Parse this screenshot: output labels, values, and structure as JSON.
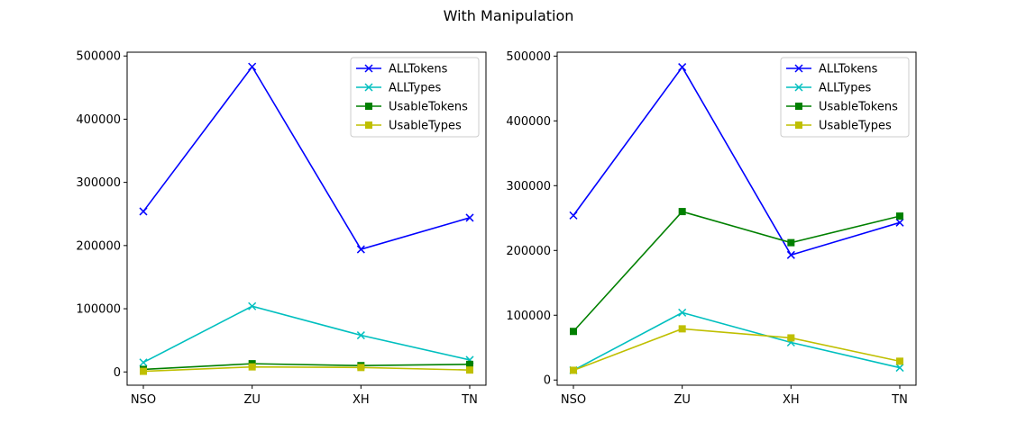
{
  "figure": {
    "title": "With Manipulation"
  },
  "chart_data": [
    {
      "type": "line",
      "title": "",
      "xlabel": "",
      "ylabel": "",
      "categories": [
        "NSO",
        "ZU",
        "XH",
        "TN"
      ],
      "ylim": [
        -21000,
        506000
      ],
      "yticks": [
        0,
        100000,
        200000,
        300000,
        400000,
        500000
      ],
      "grid": false,
      "legend_position": "upper right",
      "series": [
        {
          "name": "ALLTokens",
          "color": "#0000ff",
          "marker": "x",
          "values": [
            254000,
            483000,
            194000,
            244000
          ]
        },
        {
          "name": "ALLTypes",
          "color": "#00bfbf",
          "marker": "x",
          "values": [
            15000,
            104000,
            58000,
            19000
          ]
        },
        {
          "name": "UsableTokens",
          "color": "#008000",
          "marker": "square",
          "values": [
            4000,
            13000,
            10000,
            12000
          ]
        },
        {
          "name": "UsableTypes",
          "color": "#bfbf00",
          "marker": "square",
          "values": [
            1000,
            8000,
            7000,
            3000
          ]
        }
      ]
    },
    {
      "type": "line",
      "title": "",
      "xlabel": "",
      "ylabel": "",
      "categories": [
        "NSO",
        "ZU",
        "XH",
        "TN"
      ],
      "ylim": [
        -8000,
        506000
      ],
      "yticks": [
        0,
        100000,
        200000,
        300000,
        400000,
        500000
      ],
      "grid": false,
      "legend_position": "upper right",
      "series": [
        {
          "name": "ALLTokens",
          "color": "#0000ff",
          "marker": "x",
          "values": [
            254000,
            483000,
            193000,
            243000
          ]
        },
        {
          "name": "ALLTypes",
          "color": "#00bfbf",
          "marker": "x",
          "values": [
            15000,
            104000,
            58000,
            19000
          ]
        },
        {
          "name": "UsableTokens",
          "color": "#008000",
          "marker": "square",
          "values": [
            75000,
            260000,
            212000,
            253000
          ]
        },
        {
          "name": "UsableTypes",
          "color": "#bfbf00",
          "marker": "square",
          "values": [
            15000,
            79000,
            65000,
            29000
          ]
        }
      ]
    }
  ]
}
